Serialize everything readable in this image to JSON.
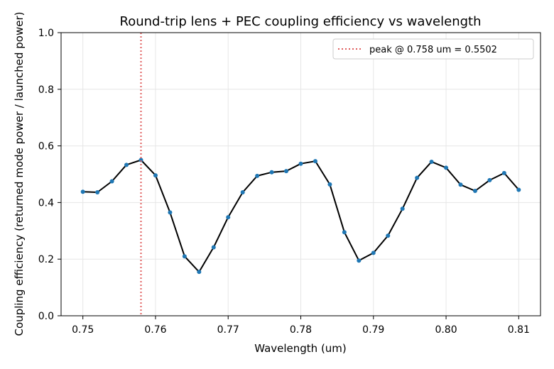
{
  "chart_data": {
    "type": "line",
    "title": "Round-trip lens + PEC coupling efficiency vs wavelength",
    "xlabel": "Wavelength (um)",
    "ylabel": "Coupling efficiency (returned mode power / launched power)",
    "xlim": [
      0.747,
      0.813
    ],
    "ylim": [
      0.0,
      1.0
    ],
    "xticks": [
      0.75,
      0.76,
      0.77,
      0.78,
      0.79,
      0.8,
      0.81
    ],
    "xtick_labels": [
      "0.75",
      "0.76",
      "0.77",
      "0.78",
      "0.79",
      "0.80",
      "0.81"
    ],
    "yticks": [
      0.0,
      0.2,
      0.4,
      0.6,
      0.8,
      1.0
    ],
    "ytick_labels": [
      "0.0",
      "0.2",
      "0.4",
      "0.6",
      "0.8",
      "1.0"
    ],
    "grid": true,
    "legend_position": "top-right",
    "series": [
      {
        "color": "#000000",
        "marker_color": "#1f77b4",
        "x": [
          0.75,
          0.752,
          0.754,
          0.756,
          0.758,
          0.76,
          0.762,
          0.764,
          0.766,
          0.768,
          0.77,
          0.772,
          0.774,
          0.776,
          0.778,
          0.78,
          0.782,
          0.784,
          0.786,
          0.788,
          0.79,
          0.792,
          0.794,
          0.796,
          0.798,
          0.8,
          0.802,
          0.804,
          0.806,
          0.808,
          0.81
        ],
        "y": [
          0.438,
          0.436,
          0.475,
          0.533,
          0.55,
          0.496,
          0.365,
          0.21,
          0.155,
          0.242,
          0.348,
          0.436,
          0.494,
          0.507,
          0.511,
          0.537,
          0.546,
          0.464,
          0.295,
          0.195,
          0.222,
          0.283,
          0.378,
          0.487,
          0.544,
          0.523,
          0.463,
          0.441,
          0.479,
          0.504,
          0.445
        ]
      }
    ],
    "peak_line": {
      "x": 0.758,
      "color": "#e05c5c",
      "label": "peak @ 0.758 um = 0.5502"
    }
  }
}
